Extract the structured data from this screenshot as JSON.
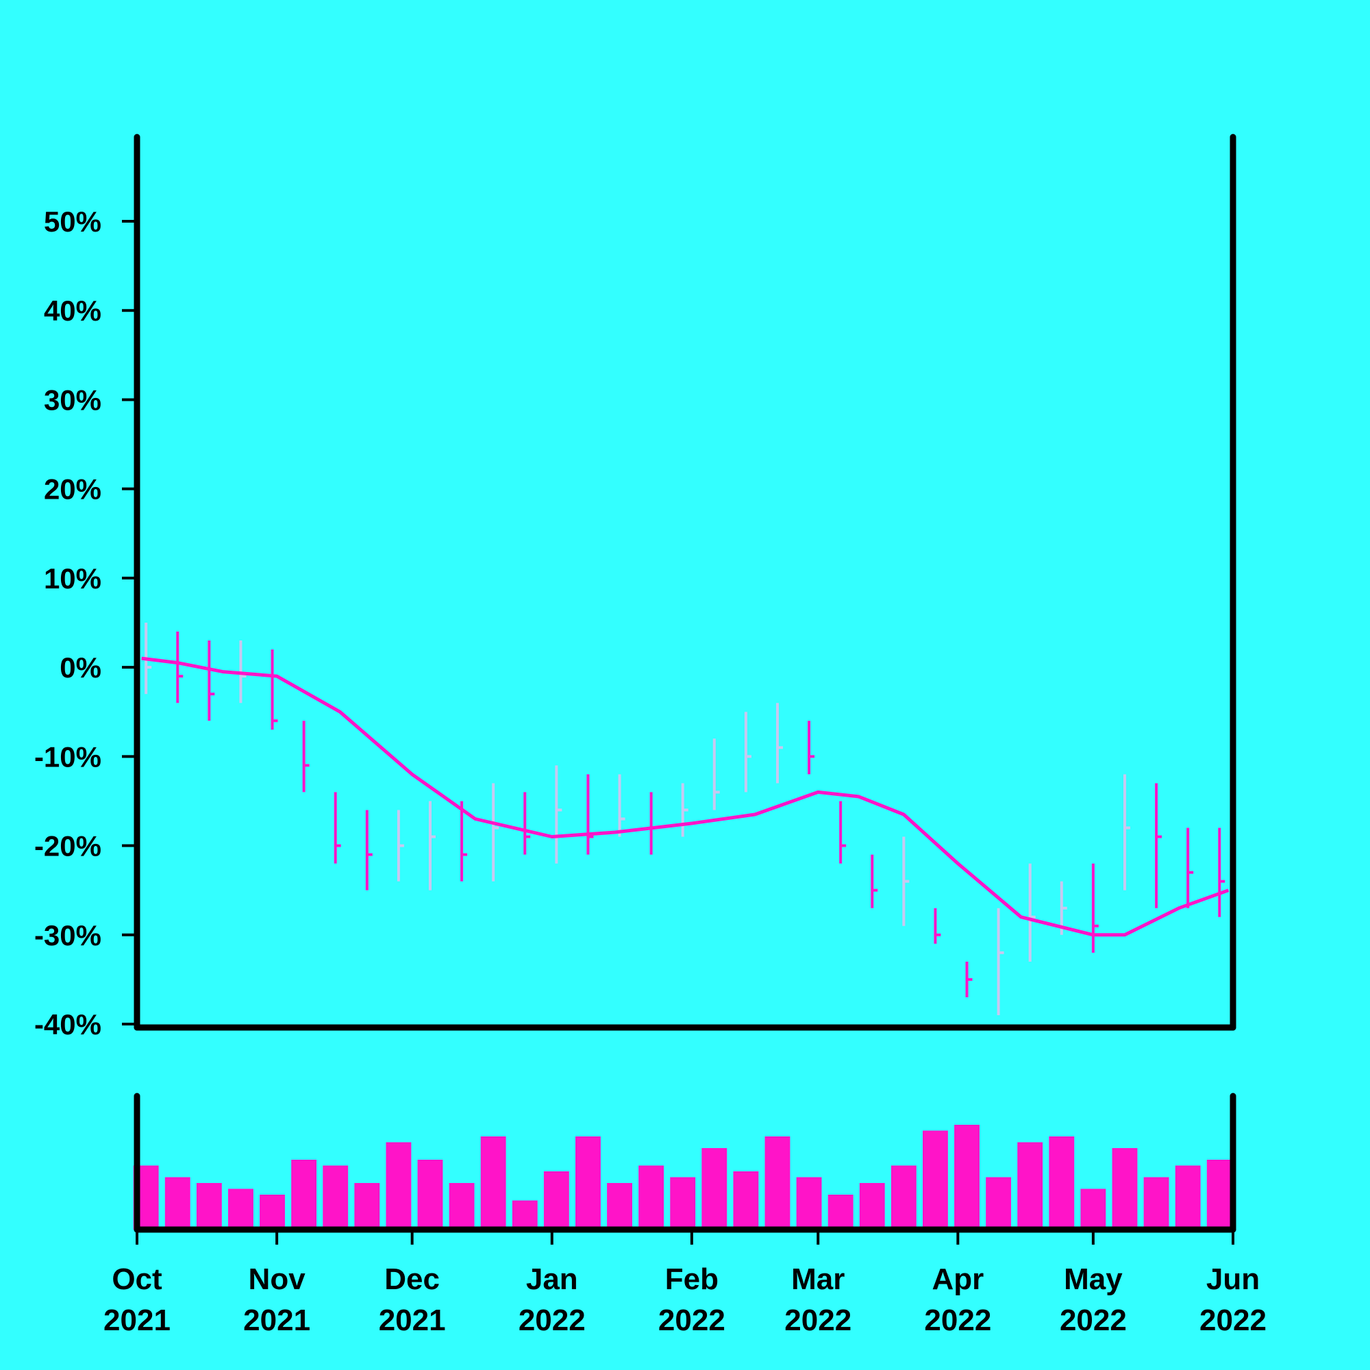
{
  "colors": {
    "background": "#33ffff",
    "axis": "#000000",
    "line": "#ff14c8",
    "bar_down": "#ff14c8",
    "bar_up": "#c8c8f0",
    "volume": "#ff14c8"
  },
  "chart_data": {
    "type": "line",
    "title": "",
    "xlabel": "",
    "ylabel": "",
    "ylim": [
      -40,
      60
    ],
    "xlim": [
      "2021-10-01",
      "2022-06-01"
    ],
    "y_ticks": [
      -40,
      -30,
      -20,
      -10,
      0,
      10,
      20,
      30,
      40,
      50
    ],
    "y_tick_labels": [
      "-40%",
      "-30%",
      "-20%",
      "-10%",
      "0%",
      "10%",
      "20%",
      "30%",
      "40%",
      "50%"
    ],
    "x_ticks": [
      {
        "date": "2021-10-01",
        "month": "Oct",
        "year": "2021"
      },
      {
        "date": "2021-11-01",
        "month": "Nov",
        "year": "2021"
      },
      {
        "date": "2021-12-01",
        "month": "Dec",
        "year": "2021"
      },
      {
        "date": "2022-01-01",
        "month": "Jan",
        "year": "2022"
      },
      {
        "date": "2022-02-01",
        "month": "Feb",
        "year": "2022"
      },
      {
        "date": "2022-03-01",
        "month": "Mar",
        "year": "2022"
      },
      {
        "date": "2022-04-01",
        "month": "Apr",
        "year": "2022"
      },
      {
        "date": "2022-05-01",
        "month": "May",
        "year": "2022"
      },
      {
        "date": "2022-06-01",
        "month": "Jun",
        "year": "2022"
      }
    ],
    "moving_average": {
      "x": [
        "2021-10-02",
        "2021-10-10",
        "2021-10-20",
        "2021-11-01",
        "2021-11-15",
        "2021-12-01",
        "2021-12-15",
        "2022-01-01",
        "2022-01-15",
        "2022-02-01",
        "2022-02-15",
        "2022-03-01",
        "2022-03-10",
        "2022-03-20",
        "2022-04-01",
        "2022-04-15",
        "2022-05-01",
        "2022-05-08",
        "2022-05-20",
        "2022-05-31"
      ],
      "y": [
        1,
        0.5,
        -0.5,
        -1,
        -5,
        -12,
        -17,
        -19,
        -18.5,
        -17.5,
        -16.5,
        -14,
        -14.5,
        -16.5,
        -22,
        -28,
        -30,
        -30,
        -27,
        -25
      ]
    },
    "range_bars": {
      "x": [
        "2021-10-03",
        "2021-10-10",
        "2021-10-17",
        "2021-10-24",
        "2021-10-31",
        "2021-11-07",
        "2021-11-14",
        "2021-11-21",
        "2021-11-28",
        "2021-12-05",
        "2021-12-12",
        "2021-12-19",
        "2021-12-26",
        "2022-01-02",
        "2022-01-09",
        "2022-01-16",
        "2022-01-23",
        "2022-01-30",
        "2022-02-06",
        "2022-02-13",
        "2022-02-20",
        "2022-02-27",
        "2022-03-06",
        "2022-03-13",
        "2022-03-20",
        "2022-03-27",
        "2022-04-03",
        "2022-04-10",
        "2022-04-17",
        "2022-04-24",
        "2022-05-01",
        "2022-05-08",
        "2022-05-15",
        "2022-05-22",
        "2022-05-29"
      ],
      "low": [
        -3,
        -4,
        -6,
        -4,
        -7,
        -14,
        -22,
        -25,
        -24,
        -25,
        -24,
        -24,
        -21,
        -22,
        -21,
        -19,
        -21,
        -19,
        -16,
        -14,
        -13,
        -12,
        -22,
        -27,
        -29,
        -31,
        -37,
        -39,
        -33,
        -30,
        -32,
        -25,
        -27,
        -27,
        -28
      ],
      "high": [
        5,
        4,
        3,
        3,
        2,
        -6,
        -14,
        -16,
        -16,
        -15,
        -15,
        -13,
        -14,
        -11,
        -12,
        -12,
        -14,
        -13,
        -8,
        -5,
        -4,
        -6,
        -15,
        -21,
        -19,
        -27,
        -33,
        -27,
        -22,
        -24,
        -22,
        -12,
        -13,
        -18,
        -18
      ],
      "close": [
        0,
        -1,
        -3,
        -1,
        -6,
        -11,
        -20,
        -21,
        -20,
        -19,
        -21,
        -18,
        -19,
        -16,
        -19,
        -17,
        -18,
        -16,
        -14,
        -10,
        -9,
        -10,
        -20,
        -25,
        -24,
        -30,
        -35,
        -32,
        -28,
        -27,
        -29,
        -18,
        -19,
        -23,
        -24
      ]
    },
    "volume": {
      "x": [
        "2021-10-03",
        "2021-10-10",
        "2021-10-17",
        "2021-10-24",
        "2021-10-31",
        "2021-11-07",
        "2021-11-14",
        "2021-11-21",
        "2021-11-28",
        "2021-12-05",
        "2021-12-12",
        "2021-12-19",
        "2021-12-26",
        "2022-01-02",
        "2022-01-09",
        "2022-01-16",
        "2022-01-23",
        "2022-01-30",
        "2022-02-06",
        "2022-02-13",
        "2022-02-20",
        "2022-02-27",
        "2022-03-06",
        "2022-03-13",
        "2022-03-20",
        "2022-03-27",
        "2022-04-03",
        "2022-04-10",
        "2022-04-17",
        "2022-04-24",
        "2022-05-01",
        "2022-05-08",
        "2022-05-15",
        "2022-05-22",
        "2022-05-29"
      ],
      "values": [
        0.55,
        0.45,
        0.4,
        0.35,
        0.3,
        0.6,
        0.55,
        0.4,
        0.75,
        0.6,
        0.4,
        0.8,
        0.25,
        0.5,
        0.8,
        0.4,
        0.55,
        0.45,
        0.7,
        0.5,
        0.8,
        0.45,
        0.3,
        0.4,
        0.55,
        0.85,
        0.9,
        0.45,
        0.75,
        0.8,
        0.35,
        0.7,
        0.45,
        0.55,
        0.6
      ]
    }
  }
}
